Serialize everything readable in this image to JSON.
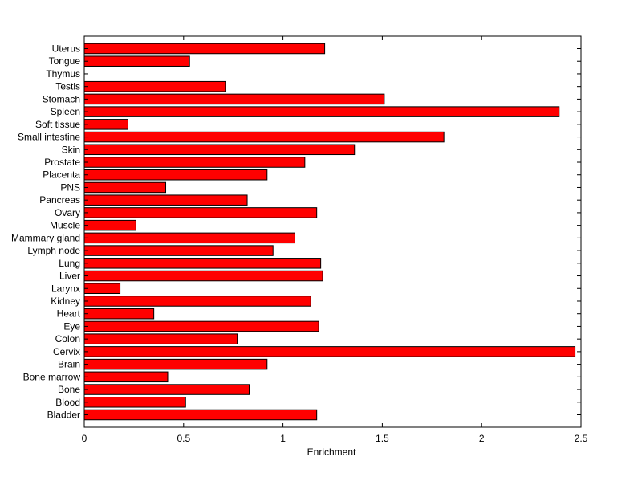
{
  "chart_data": {
    "type": "bar",
    "orientation": "horizontal",
    "categories": [
      "Uterus",
      "Tongue",
      "Thymus",
      "Testis",
      "Stomach",
      "Spleen",
      "Soft tissue",
      "Small intestine",
      "Skin",
      "Prostate",
      "Placenta",
      "PNS",
      "Pancreas",
      "Ovary",
      "Muscle",
      "Mammary gland",
      "Lymph node",
      "Lung",
      "Liver",
      "Larynx",
      "Kidney",
      "Heart",
      "Eye",
      "Colon",
      "Cervix",
      "Brain",
      "Bone marrow",
      "Bone",
      "Blood",
      "Bladder"
    ],
    "values": [
      1.21,
      0.53,
      0,
      0.71,
      1.51,
      2.39,
      0.22,
      1.81,
      1.36,
      1.11,
      0.92,
      0.41,
      0.82,
      1.17,
      0.26,
      1.06,
      0.95,
      1.19,
      1.2,
      0.18,
      1.14,
      0.35,
      1.18,
      0.77,
      2.47,
      0.92,
      0.42,
      0.83,
      0.51,
      1.17
    ],
    "xlabel": "Enrichment",
    "ylabel": "",
    "title": "",
    "xlim": [
      0,
      2.5
    ],
    "xticks": [
      "0",
      "0.5",
      "1",
      "1.5",
      "2",
      "2.5"
    ],
    "bar_color": "#ff0000",
    "grid": false,
    "legend": "none"
  }
}
